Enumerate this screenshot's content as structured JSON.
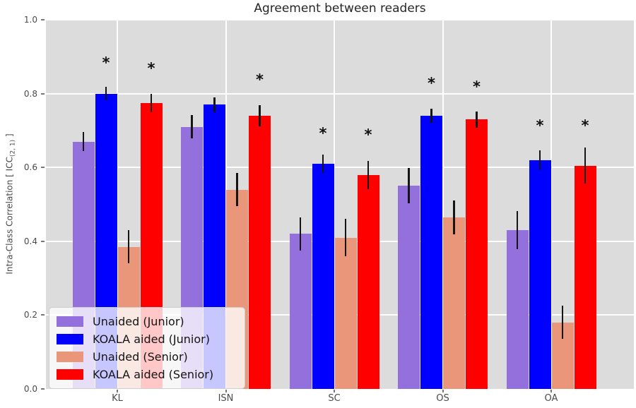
{
  "chart_data": {
    "type": "bar",
    "title": "Agreement between readers",
    "categories": [
      "KL",
      "ISN",
      "SC",
      "OS",
      "OA"
    ],
    "series": [
      {
        "name": "Unaided (Junior)",
        "color": "#9370DB",
        "values": [
          0.67,
          0.71,
          0.42,
          0.55,
          0.43
        ],
        "errors": [
          0.026,
          0.032,
          0.045,
          0.048,
          0.052
        ]
      },
      {
        "name": "KOALA aided (Junior)",
        "color": "#0000FF",
        "values": [
          0.8,
          0.77,
          0.61,
          0.74,
          0.62
        ],
        "errors": [
          0.018,
          0.02,
          0.024,
          0.02,
          0.027
        ]
      },
      {
        "name": "Unaided (Senior)",
        "color": "#E9967A",
        "values": [
          0.385,
          0.54,
          0.41,
          0.465,
          0.18
        ],
        "errors": [
          0.045,
          0.045,
          0.05,
          0.046,
          0.045
        ]
      },
      {
        "name": "KOALA aided (Senior)",
        "color": "#FF0000",
        "values": [
          0.775,
          0.74,
          0.58,
          0.73,
          0.605
        ],
        "errors": [
          0.025,
          0.029,
          0.038,
          0.022,
          0.048
        ]
      }
    ],
    "significance_markers": [
      {
        "category": "KL",
        "series": "KOALA aided (Junior)",
        "y": 0.885,
        "symbol": "*"
      },
      {
        "category": "KL",
        "series": "KOALA aided (Senior)",
        "y": 0.87,
        "symbol": "*"
      },
      {
        "category": "ISN",
        "series": "KOALA aided (Senior)",
        "y": 0.84,
        "symbol": "*"
      },
      {
        "category": "SC",
        "series": "KOALA aided (Junior)",
        "y": 0.695,
        "symbol": "*"
      },
      {
        "category": "SC",
        "series": "KOALA aided (Senior)",
        "y": 0.69,
        "symbol": "*"
      },
      {
        "category": "OS",
        "series": "KOALA aided (Junior)",
        "y": 0.83,
        "symbol": "*"
      },
      {
        "category": "OS",
        "series": "KOALA aided (Senior)",
        "y": 0.82,
        "symbol": "*"
      },
      {
        "category": "OA",
        "series": "KOALA aided (Junior)",
        "y": 0.715,
        "symbol": "*"
      },
      {
        "category": "OA",
        "series": "KOALA aided (Senior)",
        "y": 0.715,
        "symbol": "*"
      }
    ],
    "ylabel": {
      "pre": "Intra-Class Correlation [ ICC",
      "sub": "(2, 1)",
      "post": " ]"
    },
    "yticks": [
      "0.0",
      "0.2",
      "0.4",
      "0.6",
      "0.8",
      "1.0"
    ],
    "ylim": [
      0,
      1
    ],
    "grid": true,
    "plot_bg": "#DCDCDC",
    "grid_color": "#FFFFFF",
    "legend_position": "lower left"
  }
}
